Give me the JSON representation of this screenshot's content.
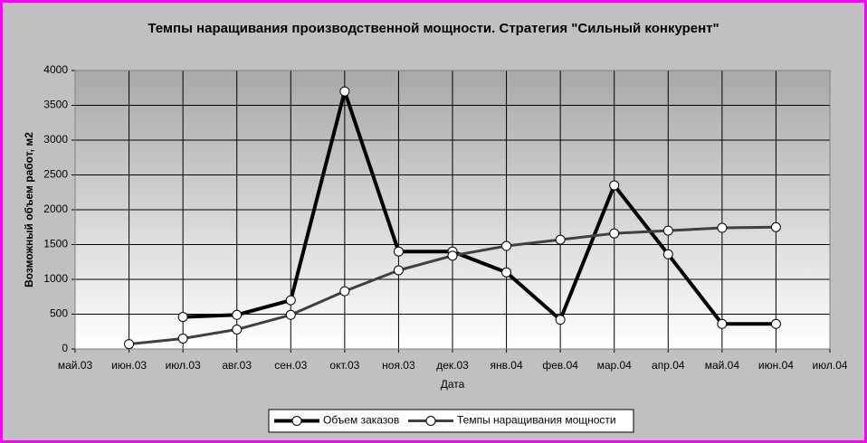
{
  "chart_data": {
    "type": "line",
    "title": "Темпы наращивания производственной мощности. Стратегия \"Сильный конкурент\"",
    "x_label": "Дата",
    "y_label": "Возможный объем работ, м2",
    "categories": [
      "май.03",
      "июн.03",
      "июл.03",
      "авг.03",
      "сен.03",
      "окт.03",
      "ноя.03",
      "дек.03",
      "янв.04",
      "фев.04",
      "мар.04",
      "апр.04",
      "май.04",
      "июн.04",
      "июл.04"
    ],
    "series": [
      {
        "name": "Объем заказов",
        "color": "#000000",
        "values": [
          null,
          null,
          460,
          490,
          700,
          3700,
          1400,
          1400,
          1100,
          420,
          2350,
          1360,
          360,
          360,
          null
        ]
      },
      {
        "name": "Темпы наращивания мощности",
        "color": "#404040",
        "values": [
          null,
          70,
          150,
          280,
          490,
          830,
          1130,
          1340,
          1480,
          1570,
          1660,
          1700,
          1740,
          1750,
          null
        ]
      }
    ],
    "ylim": [
      0,
      4000
    ],
    "yticks": [
      0,
      500,
      1000,
      1500,
      2000,
      2500,
      3000,
      3500,
      4000
    ],
    "grid": true,
    "legend": "bottom"
  }
}
